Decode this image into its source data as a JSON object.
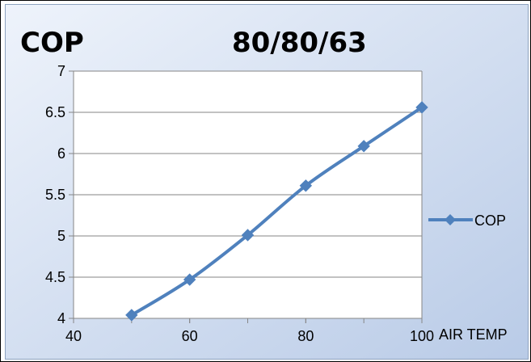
{
  "chart_data": {
    "type": "line",
    "title_left": "COP",
    "title_right": "80/80/63",
    "xlabel": "AIR TEMP",
    "ylabel": "",
    "xlim": [
      40,
      100
    ],
    "ylim": [
      4,
      7
    ],
    "xticks": [
      "40",
      "60",
      "80",
      "100"
    ],
    "yticks": [
      "4",
      "4.5",
      "5",
      "5.5",
      "6",
      "6.5",
      "7"
    ],
    "series": [
      {
        "name": "COP",
        "color": "#4f81bd",
        "x": [
          50,
          60,
          70,
          80,
          90,
          100
        ],
        "y": [
          4.04,
          4.47,
          5.01,
          5.61,
          6.09,
          6.56
        ]
      }
    ],
    "grid": "horizontal",
    "legend": "right",
    "background": {
      "outer_gradient": [
        "#eef3fb",
        "#b9cbe7"
      ],
      "plot_area": "#ffffff"
    }
  }
}
